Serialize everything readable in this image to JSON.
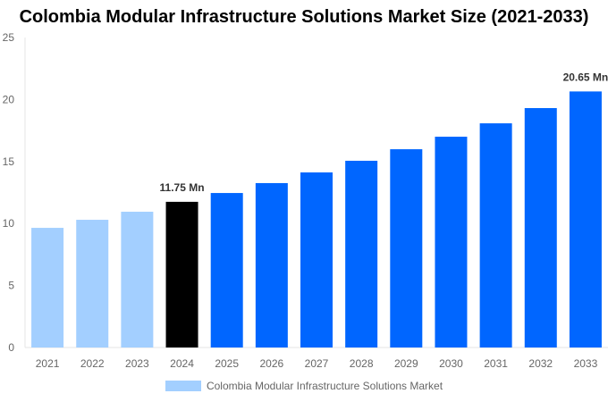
{
  "chart_data": {
    "type": "bar",
    "title": "Colombia Modular Infrastructure Solutions Market Size (2021-2033)",
    "xlabel": "",
    "ylabel": "",
    "ylim": [
      0,
      25
    ],
    "yticks": [
      "0",
      "5",
      "10",
      "15",
      "20",
      "25"
    ],
    "categories": [
      "2021",
      "2022",
      "2023",
      "2024",
      "2025",
      "2026",
      "2027",
      "2028",
      "2029",
      "2030",
      "2031",
      "2032",
      "2033"
    ],
    "series": [
      {
        "name": "Colombia Modular Infrastructure Solutions Market",
        "values": [
          9.65,
          10.3,
          10.95,
          11.75,
          12.46,
          13.26,
          14.12,
          15.06,
          15.99,
          17.0,
          18.08,
          19.31,
          20.65
        ]
      }
    ],
    "bar_colors": {
      "historical": "#a3cfff",
      "base_year": "#000000",
      "forecast": "#0066ff"
    },
    "annotations": [
      {
        "category": "2024",
        "text": "11.75 Mn"
      },
      {
        "category": "2033",
        "text": "20.65 Mn"
      }
    ],
    "legend": {
      "label": "Colombia Modular Infrastructure Solutions Market",
      "position": "bottom"
    },
    "grid": false
  }
}
